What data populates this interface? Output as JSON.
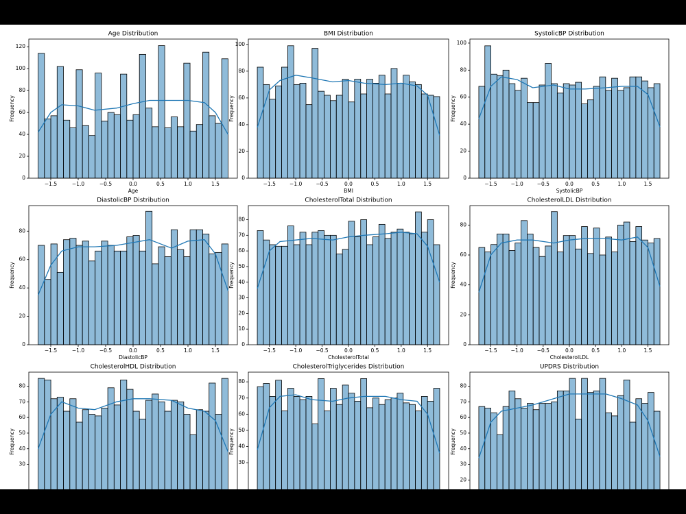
{
  "chart_data": [
    {
      "type": "histogram",
      "title": "Age Distribution",
      "xlabel": "Age",
      "ylabel": "Frequency",
      "color": "#1f77b4",
      "bins": [
        -1.73,
        -1.615,
        -1.499,
        -1.384,
        -1.269,
        -1.153,
        -1.038,
        -0.923,
        -0.807,
        -0.692,
        -0.577,
        -0.461,
        -0.346,
        -0.231,
        -0.115,
        0.0,
        0.115,
        0.231,
        0.346,
        0.461,
        0.577,
        0.692,
        0.807,
        0.923,
        1.038,
        1.153,
        1.269,
        1.384,
        1.499,
        1.615,
        1.73
      ],
      "counts": [
        114,
        54,
        57,
        102,
        53,
        46,
        99,
        48,
        39,
        96,
        52,
        60,
        58,
        95,
        53,
        58,
        113,
        64,
        47,
        121,
        46,
        56,
        47,
        105,
        43,
        49,
        115,
        57,
        50,
        109
      ],
      "kde": {
        "x": [
          -1.73,
          -1.5,
          -1.3,
          -1.0,
          -0.7,
          -0.3,
          0.0,
          0.3,
          0.7,
          1.0,
          1.3,
          1.5,
          1.73
        ],
        "values": [
          42,
          60,
          67,
          66,
          62,
          64,
          68,
          71,
          71,
          71,
          69,
          60,
          40
        ]
      },
      "xlim": [
        -1.9,
        1.9
      ],
      "ylim": [
        0,
        127
      ],
      "xticks": [
        {
          "value": -1.5,
          "label": "−1.5"
        },
        {
          "value": -1.0,
          "label": "−1.0"
        },
        {
          "value": -0.5,
          "label": "−0.5"
        },
        {
          "value": 0.0,
          "label": "0.0"
        },
        {
          "value": 0.5,
          "label": "0.5"
        },
        {
          "value": 1.0,
          "label": "1.0"
        },
        {
          "value": 1.5,
          "label": "1.5"
        }
      ],
      "yticks": [
        0,
        20,
        40,
        60,
        80,
        100,
        120
      ]
    },
    {
      "type": "histogram",
      "title": "BMI Distribution",
      "xlabel": "BMI",
      "ylabel": "Frequency",
      "color": "#1f77b4",
      "bins": [
        -1.73,
        -1.615,
        -1.499,
        -1.384,
        -1.269,
        -1.153,
        -1.038,
        -0.923,
        -0.807,
        -0.692,
        -0.577,
        -0.461,
        -0.346,
        -0.231,
        -0.115,
        0.0,
        0.115,
        0.231,
        0.346,
        0.461,
        0.577,
        0.692,
        0.807,
        0.923,
        1.038,
        1.153,
        1.269,
        1.384,
        1.499,
        1.615,
        1.73
      ],
      "counts": [
        83,
        70,
        59,
        69,
        83,
        99,
        70,
        71,
        55,
        97,
        65,
        62,
        58,
        62,
        74,
        57,
        74,
        63,
        74,
        71,
        77,
        63,
        82,
        71,
        77,
        72,
        70,
        63,
        62,
        61
      ],
      "kde": {
        "x": [
          -1.73,
          -1.5,
          -1.3,
          -1.0,
          -0.7,
          -0.3,
          0.0,
          0.3,
          0.7,
          1.0,
          1.3,
          1.5,
          1.73
        ],
        "values": [
          38,
          66,
          73,
          77,
          75,
          72,
          73,
          71,
          70,
          71,
          69,
          62,
          32
        ]
      },
      "xlim": [
        -1.9,
        1.9
      ],
      "ylim": [
        0,
        104
      ],
      "xticks": [
        {
          "value": -1.5,
          "label": "−1.5"
        },
        {
          "value": -1.0,
          "label": "−1.0"
        },
        {
          "value": -0.5,
          "label": "−0.5"
        },
        {
          "value": 0.0,
          "label": "0.0"
        },
        {
          "value": 0.5,
          "label": "0.5"
        },
        {
          "value": 1.0,
          "label": "1.0"
        },
        {
          "value": 1.5,
          "label": "1.5"
        }
      ],
      "yticks": [
        0,
        20,
        40,
        60,
        80,
        100
      ]
    },
    {
      "type": "histogram",
      "title": "SystolicBP Distribution",
      "xlabel": "SystolicBP",
      "ylabel": "Frequency",
      "color": "#1f77b4",
      "bins": [
        -1.73,
        -1.615,
        -1.499,
        -1.384,
        -1.269,
        -1.153,
        -1.038,
        -0.923,
        -0.807,
        -0.692,
        -0.577,
        -0.461,
        -0.346,
        -0.231,
        -0.115,
        0.0,
        0.115,
        0.231,
        0.346,
        0.461,
        0.577,
        0.692,
        0.807,
        0.923,
        1.038,
        1.153,
        1.269,
        1.384,
        1.499,
        1.615,
        1.73
      ],
      "counts": [
        68,
        98,
        77,
        76,
        80,
        70,
        65,
        74,
        56,
        56,
        69,
        85,
        70,
        63,
        70,
        69,
        71,
        55,
        58,
        68,
        75,
        65,
        74,
        65,
        67,
        75,
        75,
        72,
        67,
        70
      ],
      "kde": {
        "x": [
          -1.73,
          -1.5,
          -1.3,
          -1.0,
          -0.7,
          -0.3,
          0.0,
          0.3,
          0.7,
          1.0,
          1.3,
          1.5,
          1.73
        ],
        "values": [
          44,
          68,
          75,
          73,
          67,
          69,
          66,
          66,
          67,
          68,
          68,
          62,
          38
        ]
      },
      "xlim": [
        -1.9,
        1.9
      ],
      "ylim": [
        0,
        103
      ],
      "xticks": [
        {
          "value": -1.5,
          "label": "−1.5"
        },
        {
          "value": -1.0,
          "label": "−1.0"
        },
        {
          "value": -0.5,
          "label": "−0.5"
        },
        {
          "value": 0.0,
          "label": "0.0"
        },
        {
          "value": 0.5,
          "label": "0.5"
        },
        {
          "value": 1.0,
          "label": "1.0"
        },
        {
          "value": 1.5,
          "label": "1.5"
        }
      ],
      "yticks": [
        0,
        20,
        40,
        60,
        80,
        100
      ]
    },
    {
      "type": "histogram",
      "title": "DiastolicBP Distribution",
      "xlabel": "DiastolicBP",
      "ylabel": "Frequency",
      "color": "#1f77b4",
      "bins": [
        -1.73,
        -1.615,
        -1.499,
        -1.384,
        -1.269,
        -1.153,
        -1.038,
        -0.923,
        -0.807,
        -0.692,
        -0.577,
        -0.461,
        -0.346,
        -0.231,
        -0.115,
        0.0,
        0.115,
        0.231,
        0.346,
        0.461,
        0.577,
        0.692,
        0.807,
        0.923,
        1.038,
        1.153,
        1.269,
        1.384,
        1.499,
        1.615,
        1.73
      ],
      "counts": [
        70,
        46,
        71,
        51,
        74,
        75,
        70,
        73,
        59,
        66,
        73,
        70,
        66,
        66,
        76,
        77,
        66,
        94,
        57,
        69,
        62,
        81,
        67,
        62,
        81,
        81,
        78,
        64,
        65,
        71
      ],
      "kde": {
        "x": [
          -1.73,
          -1.5,
          -1.3,
          -1.0,
          -0.7,
          -0.3,
          0.0,
          0.3,
          0.7,
          1.0,
          1.3,
          1.5,
          1.73
        ],
        "values": [
          35,
          56,
          66,
          69,
          69,
          70,
          72,
          74,
          68,
          73,
          74,
          64,
          38
        ]
      },
      "xlim": [
        -1.9,
        1.9
      ],
      "ylim": [
        0,
        98
      ],
      "xticks": [
        {
          "value": -1.5,
          "label": "−1.5"
        },
        {
          "value": -1.0,
          "label": "−1.0"
        },
        {
          "value": -0.5,
          "label": "−0.5"
        },
        {
          "value": 0.0,
          "label": "0.0"
        },
        {
          "value": 0.5,
          "label": "0.5"
        },
        {
          "value": 1.0,
          "label": "1.0"
        },
        {
          "value": 1.5,
          "label": "1.5"
        }
      ],
      "yticks": [
        0,
        20,
        40,
        60,
        80
      ]
    },
    {
      "type": "histogram",
      "title": "CholesterolTotal Distribution",
      "xlabel": "CholesterolTotal",
      "ylabel": "Frequency",
      "color": "#1f77b4",
      "bins": [
        -1.73,
        -1.615,
        -1.499,
        -1.384,
        -1.269,
        -1.153,
        -1.038,
        -0.923,
        -0.807,
        -0.692,
        -0.577,
        -0.461,
        -0.346,
        -0.231,
        -0.115,
        0.0,
        0.115,
        0.231,
        0.346,
        0.461,
        0.577,
        0.692,
        0.807,
        0.923,
        1.038,
        1.153,
        1.269,
        1.384,
        1.499,
        1.615,
        1.73
      ],
      "counts": [
        73,
        67,
        64,
        63,
        63,
        76,
        64,
        72,
        64,
        72,
        73,
        70,
        70,
        58,
        61,
        79,
        69,
        80,
        64,
        69,
        77,
        68,
        72,
        74,
        72,
        71,
        85,
        72,
        80,
        64
      ],
      "kde": {
        "x": [
          -1.73,
          -1.5,
          -1.3,
          -1.0,
          -0.7,
          -0.3,
          0.0,
          0.3,
          0.7,
          1.0,
          1.3,
          1.5,
          1.73
        ],
        "values": [
          36,
          60,
          66,
          67,
          68,
          67,
          69,
          70,
          71,
          72,
          71,
          63,
          40
        ]
      },
      "xlim": [
        -1.9,
        1.9
      ],
      "ylim": [
        0,
        89
      ],
      "xticks": [
        {
          "value": -1.5,
          "label": "−1.5"
        },
        {
          "value": -1.0,
          "label": "−1.0"
        },
        {
          "value": -0.5,
          "label": "−0.5"
        },
        {
          "value": 0.0,
          "label": "0.0"
        },
        {
          "value": 0.5,
          "label": "0.5"
        },
        {
          "value": 1.0,
          "label": "1.0"
        },
        {
          "value": 1.5,
          "label": "1.5"
        }
      ],
      "yticks": [
        0,
        10,
        20,
        30,
        40,
        50,
        60,
        70,
        80
      ]
    },
    {
      "type": "histogram",
      "title": "CholesterolLDL Distribution",
      "xlabel": "CholesterolLDL",
      "ylabel": "Frequency",
      "color": "#1f77b4",
      "bins": [
        -1.73,
        -1.615,
        -1.499,
        -1.384,
        -1.269,
        -1.153,
        -1.038,
        -0.923,
        -0.807,
        -0.692,
        -0.577,
        -0.461,
        -0.346,
        -0.231,
        -0.115,
        0.0,
        0.115,
        0.231,
        0.346,
        0.461,
        0.577,
        0.692,
        0.807,
        0.923,
        1.038,
        1.153,
        1.269,
        1.384,
        1.499,
        1.615,
        1.73
      ],
      "counts": [
        65,
        62,
        67,
        74,
        74,
        63,
        68,
        83,
        74,
        65,
        59,
        66,
        89,
        62,
        73,
        73,
        64,
        79,
        61,
        78,
        60,
        72,
        62,
        80,
        82,
        69,
        79,
        70,
        68,
        71
      ],
      "kde": {
        "x": [
          -1.73,
          -1.5,
          -1.3,
          -1.0,
          -0.7,
          -0.3,
          0.0,
          0.3,
          0.7,
          1.0,
          1.3,
          1.5,
          1.73
        ],
        "values": [
          35,
          60,
          68,
          70,
          70,
          68,
          70,
          71,
          71,
          70,
          72,
          65,
          39
        ]
      },
      "xlim": [
        -1.9,
        1.9
      ],
      "ylim": [
        0,
        93
      ],
      "xticks": [
        {
          "value": -1.5,
          "label": "−1.5"
        },
        {
          "value": -1.0,
          "label": "−1.0"
        },
        {
          "value": -0.5,
          "label": "−0.5"
        },
        {
          "value": 0.0,
          "label": "0.0"
        },
        {
          "value": 0.5,
          "label": "0.5"
        },
        {
          "value": 1.0,
          "label": "1.0"
        },
        {
          "value": 1.5,
          "label": "1.5"
        }
      ],
      "yticks": [
        0,
        20,
        40,
        60,
        80
      ]
    },
    {
      "type": "histogram",
      "title": "CholesterolHDL Distribution",
      "ylabel": "Frequency",
      "color": "#1f77b4",
      "bins": [
        -1.73,
        -1.615,
        -1.499,
        -1.384,
        -1.269,
        -1.153,
        -1.038,
        -0.923,
        -0.807,
        -0.692,
        -0.577,
        -0.461,
        -0.346,
        -0.231,
        -0.115,
        0.0,
        0.115,
        0.231,
        0.346,
        0.461,
        0.577,
        0.692,
        0.807,
        0.923,
        1.038,
        1.153,
        1.269,
        1.384,
        1.499,
        1.615,
        1.73
      ],
      "counts": [
        85,
        84,
        72,
        73,
        64,
        72,
        57,
        65,
        62,
        61,
        66,
        79,
        68,
        84,
        78,
        64,
        59,
        71,
        75,
        70,
        64,
        71,
        70,
        62,
        49,
        65,
        64,
        82,
        62,
        85
      ],
      "kde": {
        "x": [
          -1.73,
          -1.5,
          -1.3,
          -1.0,
          -0.7,
          -0.3,
          0.0,
          0.3,
          0.7,
          1.0,
          1.3,
          1.5,
          1.73
        ],
        "values": [
          40,
          62,
          70,
          66,
          65,
          70,
          72,
          72,
          71,
          66,
          64,
          58,
          38
        ]
      },
      "xlim": [
        -1.9,
        1.9
      ],
      "ylim": [
        0,
        89
      ],
      "yticks": [
        30,
        40,
        50,
        60,
        70,
        80
      ]
    },
    {
      "type": "histogram",
      "title": "CholesterolTriglycerides Distribution",
      "ylabel": "Frequency",
      "color": "#1f77b4",
      "bins": [
        -1.73,
        -1.615,
        -1.499,
        -1.384,
        -1.269,
        -1.153,
        -1.038,
        -0.923,
        -0.807,
        -0.692,
        -0.577,
        -0.461,
        -0.346,
        -0.231,
        -0.115,
        0.0,
        0.115,
        0.231,
        0.346,
        0.461,
        0.577,
        0.692,
        0.807,
        0.923,
        1.038,
        1.153,
        1.269,
        1.384,
        1.499,
        1.615,
        1.73
      ],
      "counts": [
        77,
        79,
        71,
        81,
        62,
        76,
        71,
        69,
        71,
        54,
        82,
        62,
        76,
        66,
        78,
        73,
        68,
        82,
        64,
        70,
        66,
        69,
        70,
        73,
        67,
        66,
        62,
        71,
        68,
        76
      ],
      "kde": {
        "x": [
          -1.73,
          -1.5,
          -1.3,
          -1.0,
          -0.7,
          -0.3,
          0.0,
          0.3,
          0.7,
          1.0,
          1.3,
          1.5,
          1.73
        ],
        "values": [
          38,
          64,
          71,
          72,
          69,
          68,
          70,
          71,
          71,
          69,
          68,
          60,
          36
        ]
      },
      "xlim": [
        -1.9,
        1.9
      ],
      "ylim": [
        0,
        86
      ],
      "yticks": [
        30,
        40,
        50,
        60,
        70,
        80
      ]
    },
    {
      "type": "histogram",
      "title": "UPDRS Distribution",
      "ylabel": "Frequency",
      "color": "#1f77b4",
      "bins": [
        -1.73,
        -1.615,
        -1.499,
        -1.384,
        -1.269,
        -1.153,
        -1.038,
        -0.923,
        -0.807,
        -0.692,
        -0.577,
        -0.461,
        -0.346,
        -0.231,
        -0.115,
        0.0,
        0.115,
        0.231,
        0.346,
        0.461,
        0.577,
        0.692,
        0.807,
        0.923,
        1.038,
        1.153,
        1.269,
        1.384,
        1.499,
        1.615,
        1.73
      ],
      "counts": [
        67,
        66,
        63,
        49,
        67,
        77,
        72,
        66,
        69,
        65,
        69,
        69,
        70,
        77,
        77,
        85,
        59,
        85,
        76,
        77,
        85,
        63,
        61,
        74,
        84,
        57,
        72,
        69,
        76,
        64
      ],
      "kde": {
        "x": [
          -1.73,
          -1.5,
          -1.3,
          -1.0,
          -0.7,
          -0.3,
          0.0,
          0.3,
          0.7,
          1.0,
          1.3,
          1.5,
          1.73
        ],
        "values": [
          34,
          57,
          64,
          66,
          68,
          72,
          75,
          75,
          75,
          72,
          68,
          58,
          35
        ]
      },
      "xlim": [
        -1.9,
        1.9
      ],
      "ylim": [
        0,
        89
      ],
      "yticks": [
        20,
        30,
        40,
        50,
        60,
        70,
        80
      ]
    }
  ]
}
